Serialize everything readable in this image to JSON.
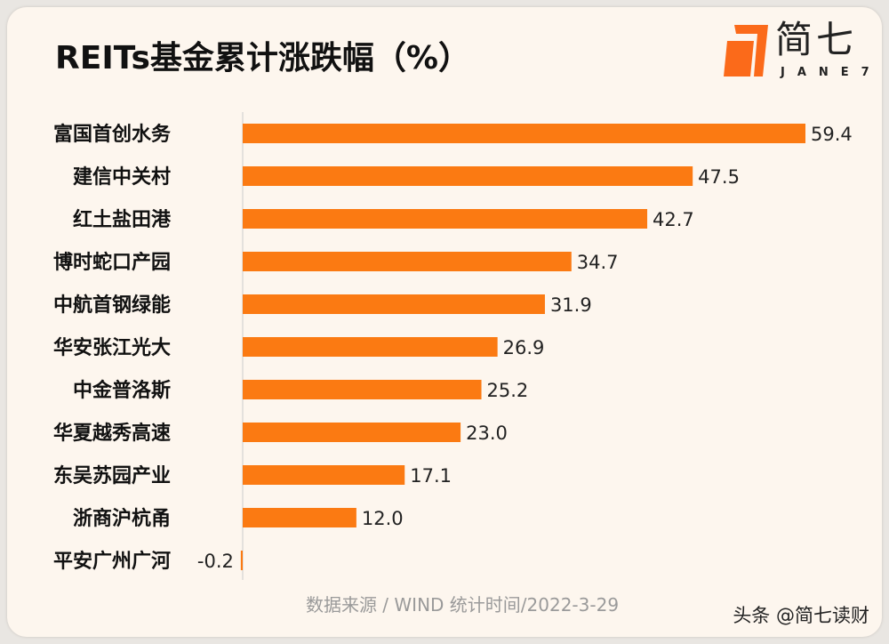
{
  "title": "REITs基金累计涨跌幅（%）",
  "logo": {
    "cn": "简七",
    "en": "JANE7"
  },
  "source": "数据来源 / WIND   统计时间/2022-3-29",
  "watermark": "头条 @简七读财",
  "colors": {
    "bar": "#fb7a12",
    "axis": "#cccccc",
    "background": "#fdf6ee"
  },
  "chart_data": {
    "type": "bar",
    "orientation": "horizontal",
    "title": "REITs基金累计涨跌幅（%）",
    "categories": [
      "富国首创水务",
      "建信中关村",
      "红土盐田港",
      "博时蛇口产园",
      "中航首钢绿能",
      "华安张江光大",
      "中金普洛斯",
      "华夏越秀高速",
      "东吴苏园产业",
      "浙商沪杭甬",
      "平安广州广河"
    ],
    "values": [
      59.4,
      47.5,
      42.7,
      34.7,
      31.9,
      26.9,
      25.2,
      23.0,
      17.1,
      12.0,
      -0.2
    ],
    "data_labels": [
      "59.4",
      "47.5",
      "42.7",
      "34.7",
      "31.9",
      "26.9",
      "25.2",
      "23.0",
      "17.1",
      "12.0",
      "-0.2"
    ],
    "xlim": [
      0,
      60
    ],
    "grid": false
  }
}
